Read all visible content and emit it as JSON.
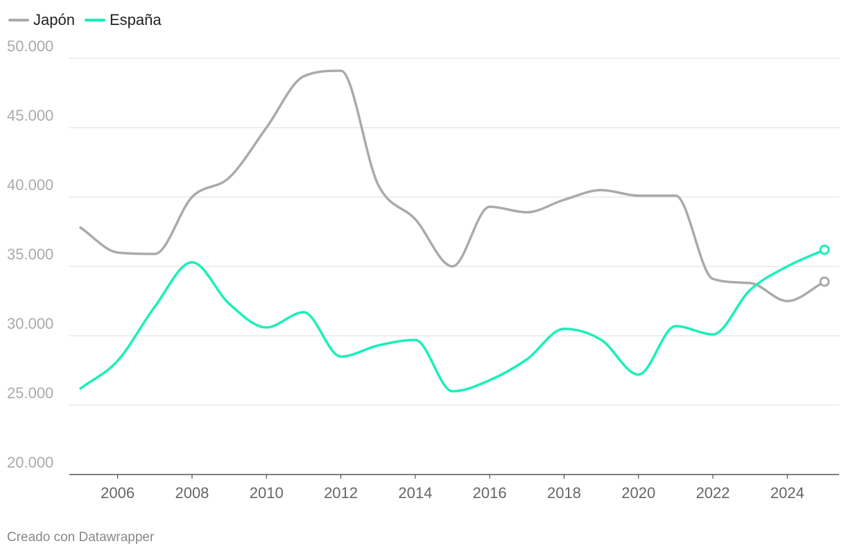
{
  "legend": [
    {
      "label": "Japón",
      "color": "#aaaaaa"
    },
    {
      "label": "España",
      "color": "#18f0b8"
    }
  ],
  "footer": {
    "credit": "Creado con Datawrapper"
  },
  "chart_data": {
    "type": "line",
    "title": "",
    "xlabel": "",
    "ylabel": "",
    "x": [
      2005,
      2006,
      2007,
      2008,
      2009,
      2010,
      2011,
      2012,
      2013,
      2014,
      2015,
      2016,
      2017,
      2018,
      2019,
      2020,
      2021,
      2022,
      2023,
      2024,
      2025
    ],
    "xticks": [
      "2006",
      "2008",
      "2010",
      "2012",
      "2014",
      "2016",
      "2018",
      "2020",
      "2022",
      "2024"
    ],
    "xtick_values": [
      2006,
      2008,
      2010,
      2012,
      2014,
      2016,
      2018,
      2020,
      2022,
      2024
    ],
    "yticks": [
      "20.000",
      "25.000",
      "30.000",
      "35.000",
      "40.000",
      "45.000",
      "50.000"
    ],
    "ytick_values": [
      20000,
      25000,
      30000,
      35000,
      40000,
      45000,
      50000
    ],
    "ylim": [
      20000,
      50000
    ],
    "xlim": [
      2005,
      2025
    ],
    "grid": true,
    "legend_position": "top-left",
    "series": [
      {
        "name": "Japón",
        "color": "#aaaaaa",
        "values": [
          37800,
          36000,
          35900,
          40000,
          41400,
          45000,
          48700,
          49100,
          40900,
          38400,
          35000,
          39300,
          38900,
          39800,
          40500,
          40100,
          40100,
          34100,
          33800,
          32500,
          33900
        ]
      },
      {
        "name": "España",
        "color": "#18f0b8",
        "values": [
          26200,
          28200,
          32100,
          35300,
          32300,
          30600,
          31700,
          28500,
          29300,
          29700,
          26000,
          26800,
          28300,
          30500,
          29700,
          27200,
          30700,
          30100,
          33300,
          35000,
          36200
        ]
      }
    ]
  }
}
